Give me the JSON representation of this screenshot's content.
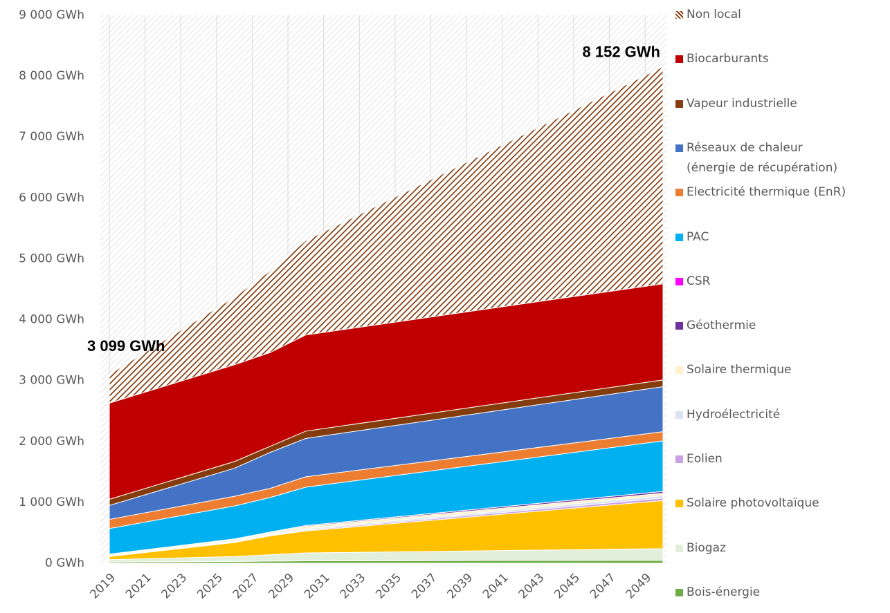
{
  "chart_data": {
    "type": "stacked-area",
    "x": [
      2019,
      2026,
      2028,
      2030,
      2050
    ],
    "xlim": [
      2019,
      2050
    ],
    "xticks": [
      2019,
      2021,
      2023,
      2025,
      2027,
      2029,
      2031,
      2033,
      2035,
      2037,
      2039,
      2041,
      2043,
      2045,
      2047,
      2049
    ],
    "ylim": [
      0,
      9000
    ],
    "yticks": [
      {
        "value": 0,
        "label": "0 GWh"
      },
      {
        "value": 1000,
        "label": "1 000 GWh"
      },
      {
        "value": 2000,
        "label": "2 000 GWh"
      },
      {
        "value": 3000,
        "label": "3 000 GWh"
      },
      {
        "value": 4000,
        "label": "4 000 GWh"
      },
      {
        "value": 5000,
        "label": "5 000 GWh"
      },
      {
        "value": 6000,
        "label": "6 000 GWh"
      },
      {
        "value": 7000,
        "label": "7 000 GWh"
      },
      {
        "value": 8000,
        "label": "8 000 GWh"
      },
      {
        "value": 9000,
        "label": "9 000 GWh"
      }
    ],
    "grid": "vertical",
    "legend": "right",
    "series": [
      {
        "name": "Bois-énergie",
        "color": "#70ad47",
        "values": [
          20,
          30,
          35,
          40,
          50
        ]
      },
      {
        "name": "Biogaz",
        "color": "#e2efda",
        "values": [
          40,
          80,
          105,
          130,
          190
        ]
      },
      {
        "name": "Solaire photovoltaïque",
        "color": "#ffc000",
        "values": [
          50,
          230,
          310,
          360,
          790
        ]
      },
      {
        "name": "Eolien",
        "color": "#c9a0e6",
        "values": [
          5,
          10,
          12,
          15,
          40
        ]
      },
      {
        "name": "Hydroélectricité",
        "color": "#dae3f3",
        "values": [
          10,
          15,
          15,
          20,
          40
        ]
      },
      {
        "name": "Solaire thermique",
        "color": "#fff2cc",
        "values": [
          20,
          25,
          25,
          40,
          40
        ]
      },
      {
        "name": "Géothermie",
        "color": "#7030a0",
        "values": [
          5,
          10,
          10,
          15,
          30
        ]
      },
      {
        "name": "CSR",
        "color": "#ff00ff",
        "values": [
          0,
          0,
          0,
          0,
          0
        ]
      },
      {
        "name": "PAC",
        "color": "#00b0f0",
        "values": [
          420,
          540,
          568,
          630,
          830
        ]
      },
      {
        "name": "Electricité thermique (EnR)",
        "color": "#ed7d31",
        "values": [
          150,
          160,
          150,
          170,
          150
        ]
      },
      {
        "name": "Réseaux de chaleur\n(énergie de récupération)",
        "color": "#4472c4",
        "values": [
          230,
          460,
          590,
          630,
          740
        ]
      },
      {
        "name": "Vapeur industrielle",
        "color": "#843c0c",
        "values": [
          100,
          110,
          100,
          120,
          110
        ]
      },
      {
        "name": "Biocarburants",
        "color": "#c00000",
        "values": [
          1580,
          1590,
          1540,
          1580,
          1580
        ]
      },
      {
        "name": "Non local",
        "color": "#843c0c",
        "pattern": "hatch",
        "values": [
          469,
          1110,
          1340,
          1550,
          3562
        ]
      }
    ],
    "total_labels": [
      {
        "x": 2019,
        "value": 3099,
        "label": "3 099 GWh"
      },
      {
        "x": 2050,
        "value": 8152,
        "label": "8 152 GWh"
      }
    ]
  }
}
